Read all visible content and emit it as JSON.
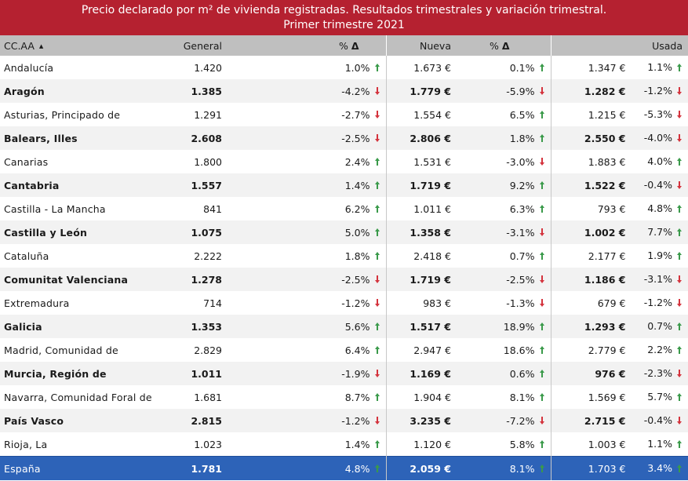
{
  "title": {
    "line1": "Precio declarado por m² de vivienda registradas. Resultados trimestrales y variación trimestral.",
    "line2": "Primer trimestre 2021"
  },
  "headers": {
    "region": "CC.AA",
    "general": "General",
    "nueva": "Nueva",
    "usada": "Usada",
    "pct": "%",
    "delta": "Δ"
  },
  "colors": {
    "title_bg": "#b52130",
    "header_bg": "#bfbfbf",
    "total_bg": "#2d63b8",
    "up": "#3a9a4a",
    "down": "#d4333d"
  },
  "rows": [
    {
      "name": "Andalucía",
      "general": "1.420",
      "g_pct": "1.0%",
      "g_dir": "up",
      "nueva": "1.673 €",
      "n_pct": "0.1%",
      "n_dir": "up",
      "usada": "1.347 €",
      "u_pct": "1.1%",
      "u_dir": "up"
    },
    {
      "name": "Aragón",
      "general": "1.385",
      "g_pct": "-4.2%",
      "g_dir": "down",
      "nueva": "1.779 €",
      "n_pct": "-5.9%",
      "n_dir": "down",
      "usada": "1.282 €",
      "u_pct": "-1.2%",
      "u_dir": "down"
    },
    {
      "name": "Asturias, Principado de",
      "general": "1.291",
      "g_pct": "-2.7%",
      "g_dir": "down",
      "nueva": "1.554 €",
      "n_pct": "6.5%",
      "n_dir": "up",
      "usada": "1.215 €",
      "u_pct": "-5.3%",
      "u_dir": "down"
    },
    {
      "name": "Balears, Illes",
      "general": "2.608",
      "g_pct": "-2.5%",
      "g_dir": "down",
      "nueva": "2.806 €",
      "n_pct": "1.8%",
      "n_dir": "up",
      "usada": "2.550 €",
      "u_pct": "-4.0%",
      "u_dir": "down"
    },
    {
      "name": "Canarias",
      "general": "1.800",
      "g_pct": "2.4%",
      "g_dir": "up",
      "nueva": "1.531 €",
      "n_pct": "-3.0%",
      "n_dir": "down",
      "usada": "1.883 €",
      "u_pct": "4.0%",
      "u_dir": "up"
    },
    {
      "name": "Cantabria",
      "general": "1.557",
      "g_pct": "1.4%",
      "g_dir": "up",
      "nueva": "1.719 €",
      "n_pct": "9.2%",
      "n_dir": "up",
      "usada": "1.522 €",
      "u_pct": "-0.4%",
      "u_dir": "down"
    },
    {
      "name": "Castilla - La Mancha",
      "general": "841",
      "g_pct": "6.2%",
      "g_dir": "up",
      "nueva": "1.011 €",
      "n_pct": "6.3%",
      "n_dir": "up",
      "usada": "793 €",
      "u_pct": "4.8%",
      "u_dir": "up"
    },
    {
      "name": "Castilla y León",
      "general": "1.075",
      "g_pct": "5.0%",
      "g_dir": "up",
      "nueva": "1.358 €",
      "n_pct": "-3.1%",
      "n_dir": "down",
      "usada": "1.002 €",
      "u_pct": "7.7%",
      "u_dir": "up"
    },
    {
      "name": "Cataluña",
      "general": "2.222",
      "g_pct": "1.8%",
      "g_dir": "up",
      "nueva": "2.418 €",
      "n_pct": "0.7%",
      "n_dir": "up",
      "usada": "2.177 €",
      "u_pct": "1.9%",
      "u_dir": "up"
    },
    {
      "name": "Comunitat Valenciana",
      "general": "1.278",
      "g_pct": "-2.5%",
      "g_dir": "down",
      "nueva": "1.719 €",
      "n_pct": "-2.5%",
      "n_dir": "down",
      "usada": "1.186 €",
      "u_pct": "-3.1%",
      "u_dir": "down"
    },
    {
      "name": "Extremadura",
      "general": "714",
      "g_pct": "-1.2%",
      "g_dir": "down",
      "nueva": "983 €",
      "n_pct": "-1.3%",
      "n_dir": "down",
      "usada": "679 €",
      "u_pct": "-1.2%",
      "u_dir": "down"
    },
    {
      "name": "Galicia",
      "general": "1.353",
      "g_pct": "5.6%",
      "g_dir": "up",
      "nueva": "1.517 €",
      "n_pct": "18.9%",
      "n_dir": "up",
      "usada": "1.293 €",
      "u_pct": "0.7%",
      "u_dir": "up"
    },
    {
      "name": "Madrid, Comunidad de",
      "general": "2.829",
      "g_pct": "6.4%",
      "g_dir": "up",
      "nueva": "2.947 €",
      "n_pct": "18.6%",
      "n_dir": "up",
      "usada": "2.779 €",
      "u_pct": "2.2%",
      "u_dir": "up"
    },
    {
      "name": "Murcia, Región de",
      "general": "1.011",
      "g_pct": "-1.9%",
      "g_dir": "down",
      "nueva": "1.169 €",
      "n_pct": "0.6%",
      "n_dir": "up",
      "usada": "976 €",
      "u_pct": "-2.3%",
      "u_dir": "down"
    },
    {
      "name": "Navarra, Comunidad Foral de",
      "general": "1.681",
      "g_pct": "8.7%",
      "g_dir": "up",
      "nueva": "1.904 €",
      "n_pct": "8.1%",
      "n_dir": "up",
      "usada": "1.569 €",
      "u_pct": "5.7%",
      "u_dir": "up"
    },
    {
      "name": "País Vasco",
      "general": "2.815",
      "g_pct": "-1.2%",
      "g_dir": "down",
      "nueva": "3.235 €",
      "n_pct": "-7.2%",
      "n_dir": "down",
      "usada": "2.715 €",
      "u_pct": "-0.4%",
      "u_dir": "down"
    },
    {
      "name": "Rioja, La",
      "general": "1.023",
      "g_pct": "1.4%",
      "g_dir": "up",
      "nueva": "1.120 €",
      "n_pct": "5.8%",
      "n_dir": "up",
      "usada": "1.003 €",
      "u_pct": "1.1%",
      "u_dir": "up"
    }
  ],
  "total": {
    "name": "España",
    "general": "1.781",
    "g_pct": "4.8%",
    "g_dir": "up",
    "nueva": "2.059 €",
    "n_pct": "8.1%",
    "n_dir": "up",
    "usada": "1.703 €",
    "u_pct": "3.4%",
    "u_dir": "up"
  }
}
